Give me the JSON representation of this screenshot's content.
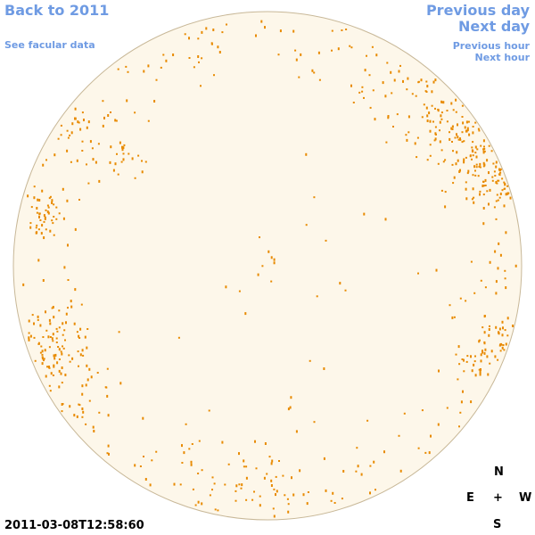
{
  "navigation": {
    "back": "Back to 2011",
    "facular_data": "See facular data",
    "previous_day": "Previous day",
    "next_day": "Next day",
    "previous_hour": "Previous hour",
    "next_hour": "Next hour"
  },
  "timestamp": "2011-03-08T12:58:60",
  "compass": {
    "north": "N",
    "east": "E",
    "center": "+",
    "west": "W",
    "south": "S"
  }
}
